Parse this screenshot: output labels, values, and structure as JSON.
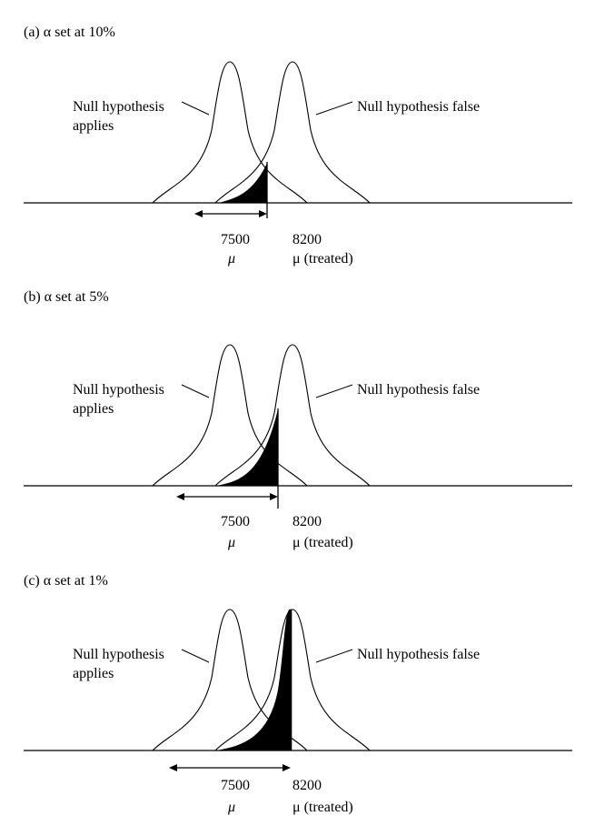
{
  "panels": [
    {
      "title": "(a) α set at 10%",
      "null_label_line1": "Null hypothesis",
      "null_label_line2": "applies",
      "alt_label": "Null hypothesis false",
      "tick_left": "7500",
      "tick_right": "8200",
      "sym_left": "μ",
      "sym_right": "μ (treated)",
      "alpha_percent": 10
    },
    {
      "title": "(b) α set at 5%",
      "null_label_line1": "Null hypothesis",
      "null_label_line2": "applies",
      "alt_label": "Null hypothesis false",
      "tick_left": "7500",
      "tick_right": "8200",
      "sym_left": "μ",
      "sym_right": "μ (treated)",
      "alpha_percent": 5
    },
    {
      "title": "(c) α set at 1%",
      "null_label_line1": "Null hypothesis",
      "null_label_line2": "applies",
      "alt_label": "Null hypothesis false",
      "tick_left": "7500",
      "tick_right": "8200",
      "sym_left": "μ",
      "sym_right": "μ (treated)",
      "alpha_percent": 1
    }
  ]
}
